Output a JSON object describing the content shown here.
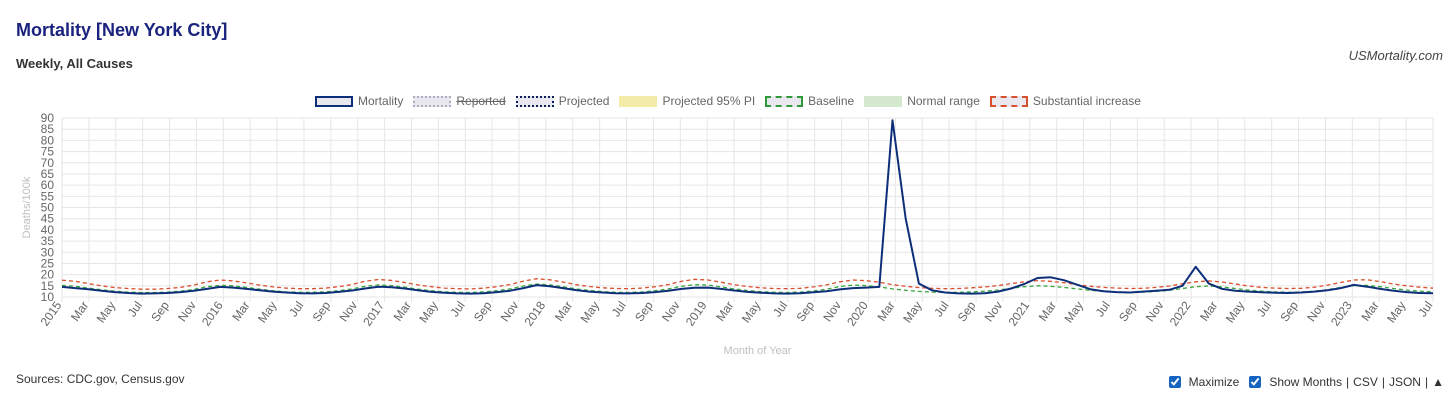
{
  "title": "Mortality [New York City]",
  "subtitle": "Weekly, All Causes",
  "brand": "USMortality.com",
  "sources": "Sources: CDC.gov, Census.gov",
  "controls": {
    "maximize_label": "Maximize",
    "show_months_label": "Show Months",
    "csv_label": "CSV",
    "json_label": "JSON",
    "sep": "|",
    "up_icon": "▲"
  },
  "legend": [
    {
      "label": "Mortality",
      "style": "solid",
      "border": "#0d2f7a",
      "fill": "#e8e8ee",
      "hidden": false
    },
    {
      "label": "Reported",
      "style": "dotted",
      "border": "#aab0c2",
      "fill": "#e8e8ee",
      "hidden": true
    },
    {
      "label": "Projected",
      "style": "dotted",
      "border": "#0d1f5a",
      "fill": "#e8e8ee",
      "hidden": false
    },
    {
      "label": "Projected 95% PI",
      "style": "none",
      "border": "#f2eca8",
      "fill": "#f2eca8",
      "hidden": false
    },
    {
      "label": "Baseline",
      "style": "dashed",
      "border": "#2e9a3a",
      "fill": "#e8e8ee",
      "hidden": false
    },
    {
      "label": "Normal range",
      "style": "none",
      "border": "#d3e8cf",
      "fill": "#d3e8cf",
      "hidden": false
    },
    {
      "label": "Substantial increase",
      "style": "dashed",
      "border": "#d9502e",
      "fill": "#e8e8ee",
      "hidden": false
    }
  ],
  "colors": {
    "mortality": "#0d2f7a",
    "baseline": "#3aa63f",
    "substantial": "#d9502e",
    "grid": "#e6e6e6",
    "axis_text": "#666666",
    "axis_title": "#c0c0c0"
  },
  "chart_data": {
    "type": "line",
    "title": "Mortality [New York City]",
    "xlabel": "Month of Year",
    "ylabel": "Deaths/100k",
    "ylim": [
      10,
      90
    ],
    "yticks": [
      10,
      15,
      20,
      25,
      30,
      35,
      40,
      45,
      50,
      55,
      60,
      65,
      70,
      75,
      80,
      85,
      90
    ],
    "grid": true,
    "legend_position": "top",
    "x_tick_labels": [
      "2015",
      "Mar",
      "May",
      "Jul",
      "Sep",
      "Nov",
      "2016",
      "Mar",
      "May",
      "Jul",
      "Sep",
      "Nov",
      "2017",
      "Mar",
      "May",
      "Jul",
      "Sep",
      "Nov",
      "2018",
      "Mar",
      "May",
      "Jul",
      "Sep",
      "Nov",
      "2019",
      "Mar",
      "May",
      "Jul",
      "Sep",
      "Nov",
      "2020",
      "Mar",
      "May",
      "Jul",
      "Sep",
      "Nov",
      "2021",
      "Mar",
      "May",
      "Jul",
      "Sep",
      "Nov",
      "2022",
      "Mar",
      "May",
      "Jul",
      "Sep",
      "Nov",
      "2023",
      "Mar",
      "May",
      "Jul"
    ],
    "series": [
      {
        "name": "Mortality",
        "x": [
          "2015-01",
          "2015-02",
          "2015-03",
          "2015-04",
          "2015-05",
          "2015-06",
          "2015-07",
          "2015-08",
          "2015-09",
          "2015-10",
          "2015-11",
          "2015-12",
          "2016-01",
          "2016-02",
          "2016-03",
          "2016-04",
          "2016-05",
          "2016-06",
          "2016-07",
          "2016-08",
          "2016-09",
          "2016-10",
          "2016-11",
          "2016-12",
          "2017-01",
          "2017-02",
          "2017-03",
          "2017-04",
          "2017-05",
          "2017-06",
          "2017-07",
          "2017-08",
          "2017-09",
          "2017-10",
          "2017-11",
          "2017-12",
          "2018-01",
          "2018-02",
          "2018-03",
          "2018-04",
          "2018-05",
          "2018-06",
          "2018-07",
          "2018-08",
          "2018-09",
          "2018-10",
          "2018-11",
          "2018-12",
          "2019-01",
          "2019-02",
          "2019-03",
          "2019-04",
          "2019-05",
          "2019-06",
          "2019-07",
          "2019-08",
          "2019-09",
          "2019-10",
          "2019-11",
          "2019-12",
          "2020-01",
          "2020-02",
          "2020-03",
          "2020-03b",
          "2020-04",
          "2020-04b",
          "2020-05",
          "2020-06",
          "2020-07",
          "2020-08",
          "2020-09",
          "2020-10",
          "2020-11",
          "2020-12",
          "2021-01",
          "2021-02",
          "2021-03",
          "2021-04",
          "2021-05",
          "2021-06",
          "2021-07",
          "2021-08",
          "2021-09",
          "2021-10",
          "2021-11",
          "2021-12",
          "2022-01",
          "2022-02",
          "2022-03",
          "2022-04",
          "2022-05",
          "2022-06",
          "2022-07",
          "2022-08",
          "2022-09",
          "2022-10",
          "2022-11",
          "2022-12",
          "2023-01",
          "2023-02",
          "2023-03",
          "2023-04",
          "2023-05",
          "2023-06",
          "2023-07"
        ],
        "values": [
          14.5,
          14,
          13.5,
          12.8,
          12.2,
          11.8,
          11.5,
          11.6,
          11.8,
          12.2,
          12.8,
          13.6,
          14.5,
          14.2,
          13.6,
          13,
          12.4,
          12,
          11.7,
          11.6,
          11.8,
          12.3,
          12.9,
          13.8,
          14.6,
          14.4,
          13.8,
          13,
          12.3,
          11.9,
          11.6,
          11.5,
          11.7,
          12.2,
          12.8,
          14,
          15.3,
          14.8,
          14,
          13.1,
          12.4,
          12,
          11.7,
          11.6,
          11.8,
          12.2,
          12.8,
          13.6,
          14.1,
          14.2,
          13.6,
          12.9,
          12.3,
          11.9,
          11.6,
          11.5,
          11.7,
          12.1,
          12.6,
          13.4,
          14,
          14.2,
          14.5,
          89,
          45,
          16,
          13,
          12,
          11.6,
          11.5,
          11.7,
          12.4,
          13.8,
          15.8,
          18.5,
          18.8,
          17.5,
          15.5,
          13.5,
          12.6,
          12.2,
          12,
          12.4,
          12.8,
          13.2,
          15,
          23.5,
          16,
          13.6,
          12.8,
          12.4,
          12.1,
          11.9,
          11.8,
          12,
          12.4,
          13,
          14,
          15.4,
          14.6,
          13.6,
          12.8,
          12.2,
          11.8,
          11.7
        ]
      },
      {
        "name": "Baseline",
        "values": [
          15.2,
          14.8,
          14,
          13.2,
          12.6,
          12.2,
          12,
          12,
          12.2,
          12.6,
          13.4,
          14.6,
          15.2,
          15,
          14.3,
          13.5,
          12.8,
          12.3,
          12.1,
          12.1,
          12.3,
          12.8,
          13.6,
          14.8,
          15.4,
          15.1,
          14.4,
          13.5,
          12.8,
          12.3,
          12.1,
          12,
          12.3,
          12.8,
          13.6,
          14.9,
          15.8,
          15.4,
          14.6,
          13.6,
          12.9,
          12.4,
          12.1,
          12,
          12.3,
          12.8,
          13.6,
          14.8,
          15.5,
          15.3,
          14.5,
          13.6,
          12.9,
          12.4,
          12.1,
          12,
          12.2,
          12.7,
          13.5,
          14.7,
          15.3,
          15.1,
          14.5,
          13.6,
          13,
          12.5,
          12.2,
          12,
          12.1,
          12.3,
          12.6,
          13.1,
          13.9,
          14.6,
          15,
          14.8,
          14.3,
          13.6,
          13,
          12.6,
          12.3,
          12.1,
          12.2,
          12.5,
          13,
          13.8,
          14.6,
          14.9,
          14.5,
          13.8,
          13.1,
          12.6,
          12.3,
          12.1,
          12.2,
          12.6,
          13.3,
          14.3,
          15.1,
          15.2,
          14.6,
          13.8,
          13.1,
          12.6,
          12.3
        ]
      },
      {
        "name": "Substantial increase",
        "values": [
          17.5,
          17,
          16,
          15,
          14.2,
          13.8,
          13.5,
          13.5,
          13.8,
          14.3,
          15.3,
          16.8,
          17.6,
          17.2,
          16.3,
          15.3,
          14.5,
          14,
          13.7,
          13.7,
          14,
          14.6,
          15.6,
          17,
          17.8,
          17.4,
          16.5,
          15.4,
          14.6,
          14,
          13.7,
          13.6,
          14,
          14.6,
          15.6,
          17.1,
          18.2,
          17.7,
          16.7,
          15.5,
          14.7,
          14.1,
          13.8,
          13.7,
          14,
          14.6,
          15.6,
          17,
          17.9,
          17.6,
          16.6,
          15.5,
          14.7,
          14.1,
          13.8,
          13.7,
          13.9,
          14.5,
          15.4,
          16.8,
          17.6,
          17.3,
          16.6,
          15.5,
          14.8,
          14.2,
          13.9,
          13.7,
          13.8,
          14.1,
          14.5,
          15.1,
          16,
          16.8,
          17.3,
          17,
          16.4,
          15.5,
          14.8,
          14.3,
          14,
          13.8,
          13.9,
          14.3,
          14.9,
          15.9,
          16.8,
          17.2,
          16.7,
          15.8,
          14.9,
          14.3,
          14,
          13.8,
          13.9,
          14.4,
          15.3,
          16.5,
          17.6,
          17.7,
          16.9,
          15.8,
          15,
          14.4,
          14
        ]
      }
    ]
  }
}
